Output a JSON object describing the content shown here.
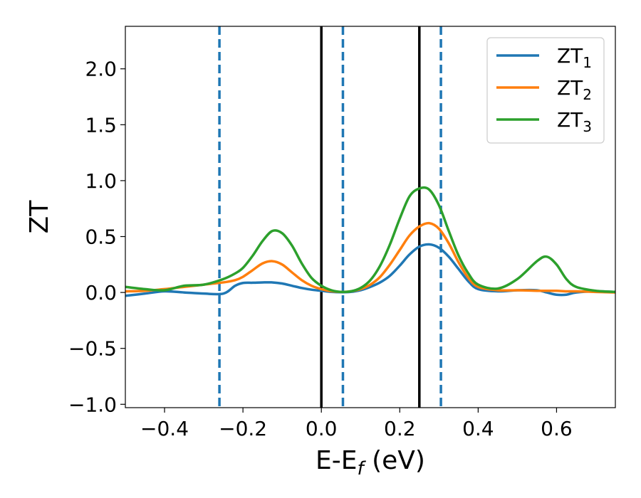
{
  "chart_data": {
    "type": "line",
    "xlabel": "E-E",
    "xlabel_sub": "f",
    "xlabel_unit": " (eV)",
    "ylabel": "ZT",
    "xlim": [
      -0.5,
      0.75
    ],
    "ylim": [
      -1.03,
      2.38
    ],
    "xticks": [
      -0.4,
      -0.2,
      0.0,
      0.2,
      0.4,
      0.6
    ],
    "xtick_labels": [
      "−0.4",
      "−0.2",
      "0.0",
      "0.2",
      "0.4",
      "0.6"
    ],
    "yticks": [
      -1.0,
      -0.5,
      0.0,
      0.5,
      1.0,
      1.5,
      2.0
    ],
    "ytick_labels": [
      "−1.0",
      "−0.5",
      "0.0",
      "0.5",
      "1.0",
      "1.5",
      "2.0"
    ],
    "legend_position": "top-right",
    "grid": false,
    "vlines": [
      {
        "x": -0.26,
        "style": "dashed",
        "color": "#1f77b4"
      },
      {
        "x": 0.0,
        "style": "solid",
        "color": "#000000"
      },
      {
        "x": 0.055,
        "style": "dashed",
        "color": "#1f77b4"
      },
      {
        "x": 0.25,
        "style": "solid",
        "color": "#000000"
      },
      {
        "x": 0.305,
        "style": "dashed",
        "color": "#1f77b4"
      }
    ],
    "x": [
      -0.5,
      -0.45,
      -0.4,
      -0.35,
      -0.3,
      -0.25,
      -0.22,
      -0.2,
      -0.175,
      -0.15,
      -0.125,
      -0.1,
      -0.075,
      -0.05,
      -0.025,
      0.0,
      0.025,
      0.05,
      0.075,
      0.1,
      0.125,
      0.15,
      0.175,
      0.2,
      0.225,
      0.25,
      0.275,
      0.3,
      0.325,
      0.35,
      0.375,
      0.4,
      0.45,
      0.5,
      0.55,
      0.575,
      0.6,
      0.625,
      0.65,
      0.7,
      0.75
    ],
    "series": [
      {
        "name": "ZT",
        "name_sub": "1",
        "color": "#1f77b4",
        "values": [
          -0.03,
          -0.01,
          0.01,
          0.0,
          -0.01,
          -0.01,
          0.06,
          0.085,
          0.087,
          0.09,
          0.09,
          0.08,
          0.06,
          0.04,
          0.025,
          0.015,
          0.005,
          0.002,
          0.005,
          0.02,
          0.05,
          0.09,
          0.15,
          0.24,
          0.34,
          0.41,
          0.43,
          0.4,
          0.32,
          0.21,
          0.1,
          0.03,
          0.01,
          0.02,
          0.02,
          0.0,
          -0.02,
          -0.02,
          0.0,
          0.01,
          0.005
        ]
      },
      {
        "name": "ZT",
        "name_sub": "2",
        "color": "#ff7f0e",
        "values": [
          0.01,
          0.015,
          0.03,
          0.05,
          0.07,
          0.09,
          0.11,
          0.14,
          0.2,
          0.26,
          0.28,
          0.25,
          0.18,
          0.11,
          0.06,
          0.03,
          0.012,
          0.005,
          0.01,
          0.03,
          0.07,
          0.14,
          0.25,
          0.38,
          0.51,
          0.59,
          0.62,
          0.57,
          0.44,
          0.27,
          0.13,
          0.05,
          0.02,
          0.02,
          0.015,
          0.015,
          0.015,
          0.01,
          0.01,
          0.005,
          0.0
        ]
      },
      {
        "name": "ZT",
        "name_sub": "3",
        "color": "#2ca02c",
        "values": [
          0.05,
          0.03,
          0.02,
          0.06,
          0.07,
          0.12,
          0.17,
          0.22,
          0.33,
          0.46,
          0.55,
          0.53,
          0.42,
          0.26,
          0.13,
          0.06,
          0.02,
          0.005,
          0.01,
          0.04,
          0.11,
          0.24,
          0.43,
          0.66,
          0.86,
          0.93,
          0.92,
          0.78,
          0.55,
          0.33,
          0.17,
          0.07,
          0.035,
          0.12,
          0.28,
          0.32,
          0.25,
          0.12,
          0.05,
          0.015,
          0.005
        ]
      }
    ]
  }
}
